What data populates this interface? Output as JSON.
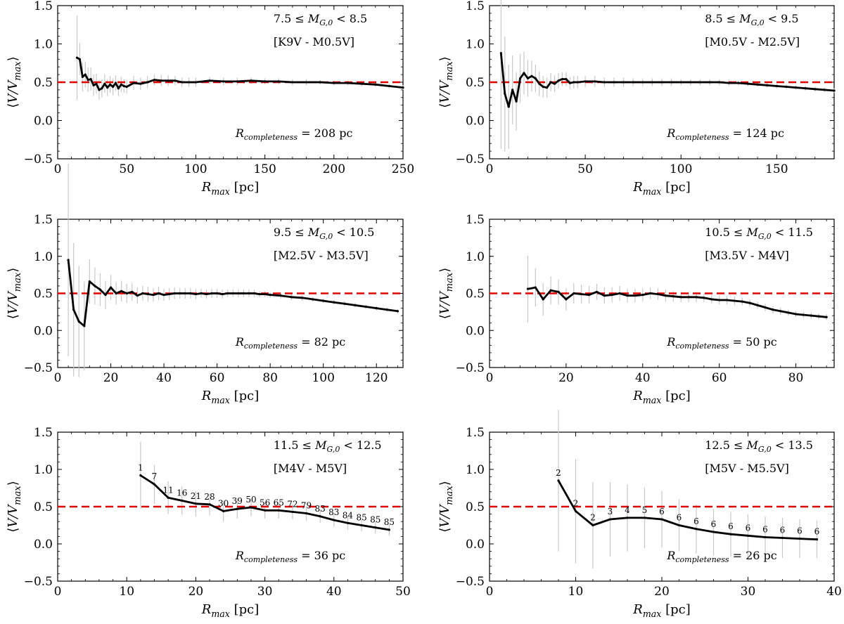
{
  "chart_data": [
    {
      "type": "line",
      "panel": "top-left",
      "xlabel": "R_max [pc]",
      "ylabel": "⟨V/V_max⟩",
      "xlim": [
        0,
        250
      ],
      "ylim": [
        -0.5,
        1.5
      ],
      "xticks": [
        "0",
        "50",
        "100",
        "150",
        "200",
        "250"
      ],
      "yticks": [
        "−0.5",
        "0.0",
        "0.5",
        "1.0",
        "1.5"
      ],
      "mag_range": "7.5 ≤ M_G,0 < 8.5",
      "spectral_range": "[K9V - M0.5V]",
      "completeness": "R_completeness = 208 pc",
      "reference_line": 0.5,
      "x": [
        14,
        16,
        18,
        20,
        22,
        24,
        26,
        28,
        30,
        32,
        34,
        36,
        38,
        40,
        42,
        44,
        46,
        48,
        50,
        55,
        60,
        65,
        70,
        75,
        80,
        85,
        90,
        95,
        100,
        110,
        120,
        130,
        140,
        150,
        160,
        170,
        180,
        190,
        200,
        210,
        220,
        230,
        240,
        250
      ],
      "y": [
        0.82,
        0.8,
        0.57,
        0.6,
        0.53,
        0.54,
        0.46,
        0.48,
        0.4,
        0.42,
        0.48,
        0.43,
        0.47,
        0.44,
        0.49,
        0.42,
        0.47,
        0.45,
        0.44,
        0.49,
        0.48,
        0.5,
        0.53,
        0.52,
        0.52,
        0.52,
        0.5,
        0.5,
        0.5,
        0.52,
        0.51,
        0.51,
        0.52,
        0.51,
        0.51,
        0.5,
        0.5,
        0.5,
        0.49,
        0.49,
        0.48,
        0.47,
        0.45,
        0.43
      ],
      "err": [
        0.55,
        0.21,
        0.19,
        0.17,
        0.16,
        0.15,
        0.14,
        0.13,
        0.13,
        0.12,
        0.12,
        0.11,
        0.11,
        0.11,
        0.1,
        0.1,
        0.1,
        0.09,
        0.09,
        0.09,
        0.08,
        0.08,
        0.07,
        0.07,
        0.07,
        0.06,
        0.06,
        0.06,
        0.06,
        0.05,
        0.05,
        0.05,
        0.04,
        0.04,
        0.04,
        0.04,
        0.04,
        0.03,
        0.03,
        0.03,
        0.03,
        0.03,
        0.03,
        0.03
      ]
    },
    {
      "type": "line",
      "panel": "top-right",
      "xlabel": "R_max [pc]",
      "ylabel": "⟨V/V_max⟩",
      "xlim": [
        0,
        180
      ],
      "ylim": [
        -0.5,
        1.5
      ],
      "xticks": [
        "0",
        "50",
        "100",
        "150"
      ],
      "yticks": [
        "−0.5",
        "0.0",
        "0.5",
        "1.0",
        "1.5"
      ],
      "mag_range": "8.5 ≤ M_G,0 < 9.5",
      "spectral_range": "[M0.5V - M2.5V]",
      "completeness": "R_completeness = 124 pc",
      "reference_line": 0.5,
      "x": [
        6,
        8,
        10,
        12,
        14,
        16,
        18,
        20,
        22,
        24,
        26,
        28,
        30,
        32,
        34,
        36,
        38,
        40,
        42,
        44,
        46,
        50,
        55,
        60,
        65,
        70,
        75,
        80,
        85,
        90,
        95,
        100,
        105,
        110,
        115,
        120,
        125,
        130,
        135,
        140,
        145,
        150,
        155,
        160,
        165,
        170,
        175,
        180
      ],
      "y": [
        0.88,
        0.35,
        0.18,
        0.4,
        0.25,
        0.55,
        0.62,
        0.55,
        0.58,
        0.55,
        0.48,
        0.44,
        0.43,
        0.5,
        0.48,
        0.52,
        0.54,
        0.54,
        0.49,
        0.5,
        0.5,
        0.51,
        0.51,
        0.5,
        0.5,
        0.5,
        0.5,
        0.5,
        0.5,
        0.5,
        0.5,
        0.5,
        0.5,
        0.5,
        0.5,
        0.5,
        0.49,
        0.49,
        0.48,
        0.47,
        0.46,
        0.45,
        0.44,
        0.43,
        0.42,
        0.41,
        0.4,
        0.39
      ],
      "err": [
        1.25,
        0.75,
        0.55,
        0.45,
        0.38,
        0.32,
        0.28,
        0.24,
        0.2,
        0.18,
        0.16,
        0.14,
        0.13,
        0.12,
        0.11,
        0.1,
        0.09,
        0.09,
        0.08,
        0.08,
        0.08,
        0.07,
        0.07,
        0.06,
        0.06,
        0.06,
        0.05,
        0.05,
        0.05,
        0.05,
        0.05,
        0.04,
        0.04,
        0.04,
        0.04,
        0.04,
        0.04,
        0.03,
        0.03,
        0.03,
        0.03,
        0.03,
        0.03,
        0.03,
        0.03,
        0.03,
        0.03,
        0.03
      ]
    },
    {
      "type": "line",
      "panel": "middle-left",
      "xlabel": "R_max [pc]",
      "ylabel": "⟨V/V_max⟩",
      "xlim": [
        0,
        130
      ],
      "ylim": [
        -0.5,
        1.5
      ],
      "xticks": [
        "0",
        "20",
        "40",
        "60",
        "80",
        "100",
        "120"
      ],
      "yticks": [
        "−0.5",
        "0.0",
        "0.5",
        "1.0",
        "1.5"
      ],
      "mag_range": "9.5 ≤ M_G,0 < 10.5",
      "spectral_range": "[M2.5V - M3.5V]",
      "completeness": "R_completeness = 82 pc",
      "reference_line": 0.5,
      "x": [
        4,
        6,
        8,
        10,
        12,
        14,
        16,
        18,
        20,
        22,
        24,
        26,
        28,
        30,
        32,
        34,
        36,
        38,
        40,
        42,
        44,
        46,
        48,
        50,
        52,
        54,
        56,
        58,
        60,
        62,
        64,
        66,
        68,
        70,
        72,
        74,
        76,
        78,
        80,
        84,
        88,
        92,
        96,
        100,
        104,
        108,
        112,
        116,
        120,
        124,
        128
      ],
      "y": [
        0.95,
        0.28,
        0.12,
        0.06,
        0.66,
        0.6,
        0.55,
        0.48,
        0.58,
        0.5,
        0.53,
        0.5,
        0.52,
        0.47,
        0.5,
        0.49,
        0.48,
        0.5,
        0.48,
        0.49,
        0.5,
        0.5,
        0.5,
        0.5,
        0.49,
        0.5,
        0.49,
        0.5,
        0.5,
        0.49,
        0.5,
        0.5,
        0.5,
        0.5,
        0.5,
        0.5,
        0.49,
        0.49,
        0.48,
        0.47,
        0.45,
        0.44,
        0.42,
        0.4,
        0.38,
        0.36,
        0.34,
        0.32,
        0.3,
        0.28,
        0.26
      ],
      "err": [
        1.3,
        0.9,
        0.75,
        0.6,
        0.3,
        0.25,
        0.22,
        0.19,
        0.17,
        0.15,
        0.14,
        0.13,
        0.12,
        0.11,
        0.1,
        0.1,
        0.09,
        0.09,
        0.08,
        0.08,
        0.08,
        0.07,
        0.07,
        0.07,
        0.07,
        0.06,
        0.06,
        0.06,
        0.06,
        0.06,
        0.05,
        0.05,
        0.05,
        0.05,
        0.05,
        0.05,
        0.04,
        0.04,
        0.04,
        0.04,
        0.04,
        0.04,
        0.03,
        0.03,
        0.03,
        0.03,
        0.03,
        0.03,
        0.03,
        0.03,
        0.03
      ]
    },
    {
      "type": "line",
      "panel": "middle-right",
      "xlabel": "R_max [pc]",
      "ylabel": "⟨V/V_max⟩",
      "xlim": [
        0,
        90
      ],
      "ylim": [
        -0.5,
        1.5
      ],
      "xticks": [
        "0",
        "20",
        "40",
        "60",
        "80"
      ],
      "yticks": [
        "−0.5",
        "0.0",
        "0.5",
        "1.0",
        "1.5"
      ],
      "mag_range": "10.5 ≤ M_G,0 < 11.5",
      "spectral_range": "[M3.5V - M4V]",
      "completeness": "R_completeness = 50 pc",
      "reference_line": 0.5,
      "x": [
        10,
        12,
        14,
        16,
        18,
        20,
        22,
        24,
        26,
        28,
        30,
        32,
        34,
        36,
        38,
        40,
        42,
        44,
        46,
        48,
        50,
        52,
        54,
        56,
        58,
        60,
        62,
        64,
        66,
        68,
        70,
        72,
        74,
        76,
        78,
        80,
        82,
        84,
        86,
        88
      ],
      "y": [
        0.56,
        0.58,
        0.42,
        0.54,
        0.52,
        0.42,
        0.5,
        0.49,
        0.48,
        0.52,
        0.47,
        0.48,
        0.5,
        0.47,
        0.47,
        0.48,
        0.5,
        0.49,
        0.47,
        0.46,
        0.45,
        0.45,
        0.45,
        0.44,
        0.42,
        0.41,
        0.41,
        0.4,
        0.39,
        0.37,
        0.34,
        0.31,
        0.28,
        0.26,
        0.24,
        0.22,
        0.21,
        0.2,
        0.19,
        0.18
      ],
      "err": [
        0.45,
        0.26,
        0.22,
        0.19,
        0.17,
        0.15,
        0.14,
        0.13,
        0.12,
        0.11,
        0.11,
        0.1,
        0.1,
        0.09,
        0.09,
        0.09,
        0.08,
        0.08,
        0.08,
        0.07,
        0.07,
        0.07,
        0.07,
        0.06,
        0.06,
        0.06,
        0.06,
        0.06,
        0.05,
        0.05,
        0.05,
        0.05,
        0.05,
        0.05,
        0.04,
        0.04,
        0.04,
        0.04,
        0.04,
        0.04
      ]
    },
    {
      "type": "line",
      "panel": "bottom-left",
      "xlabel": "R_max [pc]",
      "ylabel": "⟨V/V_max⟩",
      "xlim": [
        0,
        50
      ],
      "ylim": [
        -0.5,
        1.5
      ],
      "xticks": [
        "0",
        "10",
        "20",
        "30",
        "40",
        "50"
      ],
      "yticks": [
        "−0.5",
        "0.0",
        "0.5",
        "1.0",
        "1.5"
      ],
      "mag_range": "11.5 ≤ M_G,0 < 12.5",
      "spectral_range": "[M4V - M5V]",
      "completeness": "R_completeness = 36 pc",
      "reference_line": 0.5,
      "x": [
        12,
        14,
        16,
        18,
        20,
        22,
        24,
        26,
        28,
        30,
        32,
        34,
        36,
        38,
        40,
        42,
        44,
        46,
        48
      ],
      "y": [
        0.92,
        0.8,
        0.62,
        0.58,
        0.54,
        0.53,
        0.44,
        0.47,
        0.49,
        0.45,
        0.45,
        0.43,
        0.41,
        0.37,
        0.32,
        0.28,
        0.25,
        0.22,
        0.19
      ],
      "err": [
        0.45,
        0.26,
        0.22,
        0.19,
        0.17,
        0.15,
        0.14,
        0.13,
        0.12,
        0.11,
        0.11,
        0.1,
        0.1,
        0.09,
        0.09,
        0.09,
        0.08,
        0.08,
        0.08
      ],
      "counts": [
        "1",
        "7",
        "11",
        "16",
        "21",
        "28",
        "30",
        "39",
        "50",
        "56",
        "65",
        "72",
        "79",
        "83",
        "83",
        "84",
        "85",
        "85",
        "85"
      ]
    },
    {
      "type": "line",
      "panel": "bottom-right",
      "xlabel": "R_max [pc]",
      "ylabel": "⟨V/V_max⟩",
      "xlim": [
        0,
        40
      ],
      "ylim": [
        -0.5,
        1.5
      ],
      "xticks": [
        "0",
        "10",
        "20",
        "30",
        "40"
      ],
      "yticks": [
        "−0.5",
        "0.0",
        "0.5",
        "1.0",
        "1.5"
      ],
      "mag_range": "12.5 ≤ M_G,0 < 13.5",
      "spectral_range": "[M5V - M5.5V]",
      "completeness": "R_completeness = 26 pc",
      "reference_line": 0.5,
      "x": [
        8,
        10,
        12,
        14,
        16,
        18,
        20,
        22,
        24,
        26,
        28,
        30,
        32,
        34,
        36,
        38
      ],
      "y": [
        0.85,
        0.44,
        0.25,
        0.33,
        0.35,
        0.35,
        0.33,
        0.25,
        0.2,
        0.16,
        0.13,
        0.11,
        0.09,
        0.08,
        0.07,
        0.06
      ],
      "err": [
        0.95,
        0.7,
        0.58,
        0.5,
        0.45,
        0.41,
        0.38,
        0.35,
        0.33,
        0.31,
        0.3,
        0.29,
        0.28,
        0.27,
        0.26,
        0.25
      ],
      "counts": [
        "2",
        "2",
        "2",
        "3",
        "4",
        "5",
        "6",
        "6",
        "6",
        "6",
        "6",
        "6",
        "6",
        "6",
        "6",
        "6"
      ]
    }
  ]
}
